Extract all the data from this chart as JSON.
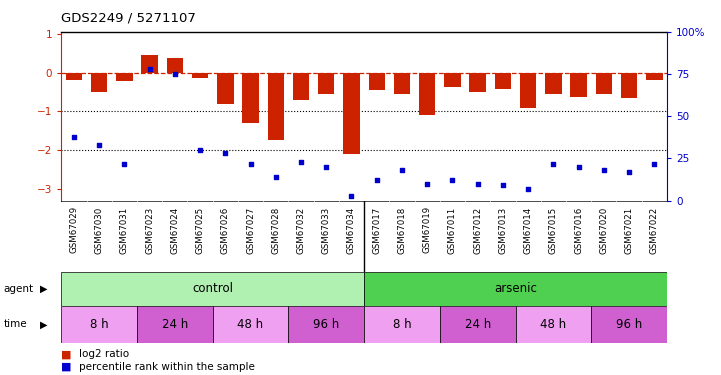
{
  "title": "GDS2249 / 5271107",
  "samples": [
    "GSM67029",
    "GSM67030",
    "GSM67031",
    "GSM67023",
    "GSM67024",
    "GSM67025",
    "GSM67026",
    "GSM67027",
    "GSM67028",
    "GSM67032",
    "GSM67033",
    "GSM67034",
    "GSM67017",
    "GSM67018",
    "GSM67019",
    "GSM67011",
    "GSM67012",
    "GSM67013",
    "GSM67014",
    "GSM67015",
    "GSM67016",
    "GSM67020",
    "GSM67021",
    "GSM67022"
  ],
  "log2_ratio": [
    -0.18,
    -0.5,
    -0.22,
    0.45,
    0.38,
    -0.15,
    -0.8,
    -1.3,
    -1.75,
    -0.7,
    -0.55,
    -2.1,
    -0.45,
    -0.55,
    -1.1,
    -0.38,
    -0.5,
    -0.42,
    -0.9,
    -0.55,
    -0.62,
    -0.55,
    -0.65,
    -0.18
  ],
  "percentile_rank": [
    38,
    33,
    22,
    78,
    75,
    30,
    28,
    22,
    14,
    23,
    20,
    3,
    12,
    18,
    10,
    12,
    10,
    9,
    7,
    22,
    20,
    18,
    17,
    22
  ],
  "agent_groups": [
    {
      "label": "control",
      "start": 0,
      "end": 12,
      "color": "#b0f0b0"
    },
    {
      "label": "arsenic",
      "start": 12,
      "end": 24,
      "color": "#50d050"
    }
  ],
  "time_groups": [
    {
      "label": "8 h",
      "start": 0,
      "end": 3,
      "color": "#f0a0f0"
    },
    {
      "label": "24 h",
      "start": 3,
      "end": 6,
      "color": "#d060d0"
    },
    {
      "label": "48 h",
      "start": 6,
      "end": 9,
      "color": "#f0a0f0"
    },
    {
      "label": "96 h",
      "start": 9,
      "end": 12,
      "color": "#d060d0"
    },
    {
      "label": "8 h",
      "start": 12,
      "end": 15,
      "color": "#f0a0f0"
    },
    {
      "label": "24 h",
      "start": 15,
      "end": 18,
      "color": "#d060d0"
    },
    {
      "label": "48 h",
      "start": 18,
      "end": 21,
      "color": "#f0a0f0"
    },
    {
      "label": "96 h",
      "start": 21,
      "end": 24,
      "color": "#d060d0"
    }
  ],
  "bar_color": "#cc2200",
  "scatter_color": "#0000cc",
  "ylim": [
    -3.3,
    1.05
  ],
  "yticks_left": [
    1,
    0,
    -1,
    -2,
    -3
  ],
  "yticks_right": [
    100,
    75,
    50,
    25,
    0
  ],
  "hline_zero_color": "#cc2200",
  "dotted_lines": [
    -1,
    -2
  ],
  "background_color": "#ffffff",
  "sample_bg_color": "#d8d8d8"
}
